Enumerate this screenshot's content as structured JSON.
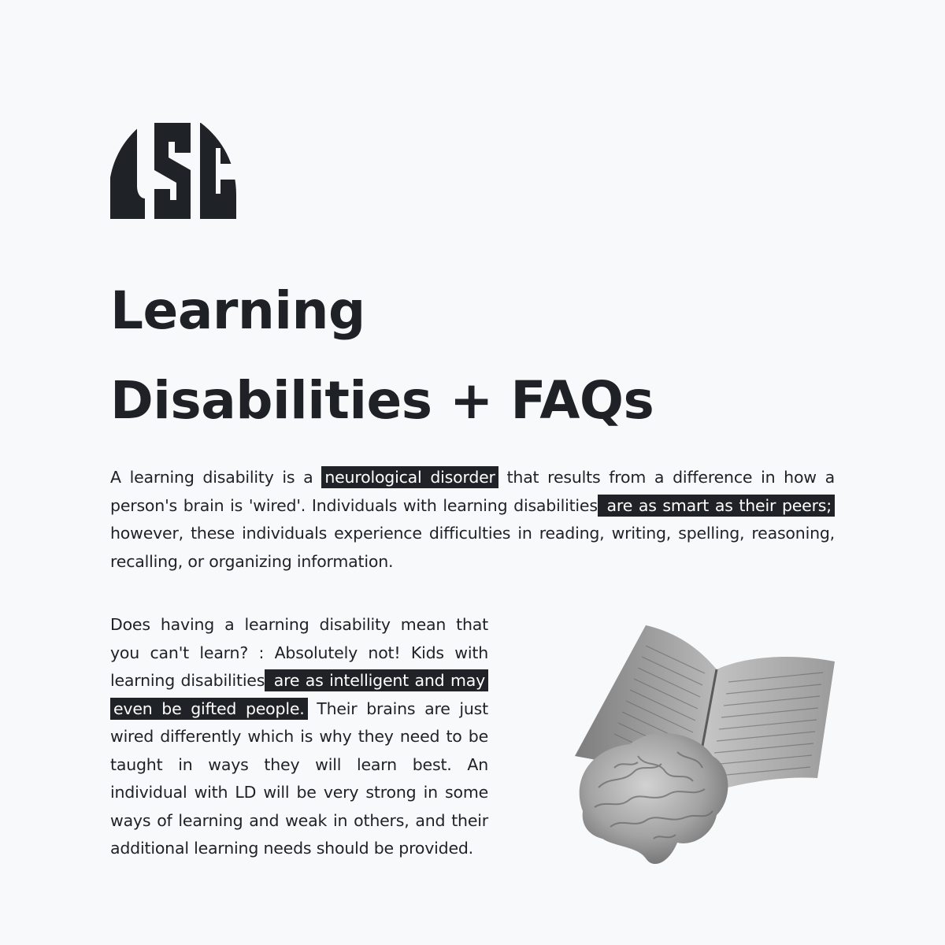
{
  "logo": {
    "text": "USC",
    "icon": "usc-logo-icon",
    "color": "#1f2227"
  },
  "title": {
    "line1": "Learning",
    "line2": "Disabilities + FAQs"
  },
  "paragraph1": {
    "part1": "A learning disability is a ",
    "highlight1": "neurological disorder",
    "part2": " that results from a difference in how a person's brain is 'wired'. Individuals with learning disabilities",
    "highlight2": " are as smart as their peers;",
    "part3": " however, these individuals experience difficulties in reading, writing, spelling, reasoning, recalling, or organizing information."
  },
  "paragraph2": {
    "part1": "Does having a learning disability mean that you can't learn? : Absolutely not! Kids with learning disabilities",
    "highlight1": " are as intelligent and may even be gifted people.",
    "part2": " Their brains are just wired differently which is why they need to be taught in ways they will learn best. An individual with LD will be very strong in some ways of learning and weak in others, and their additional learning needs should be provided."
  },
  "illustration": {
    "icons": [
      "open-book-icon",
      "brain-icon"
    ]
  },
  "colors": {
    "background": "#f7f9fa",
    "text": "#1e2126",
    "highlight_bg": "#1f2227",
    "highlight_text": "#ffffff"
  }
}
